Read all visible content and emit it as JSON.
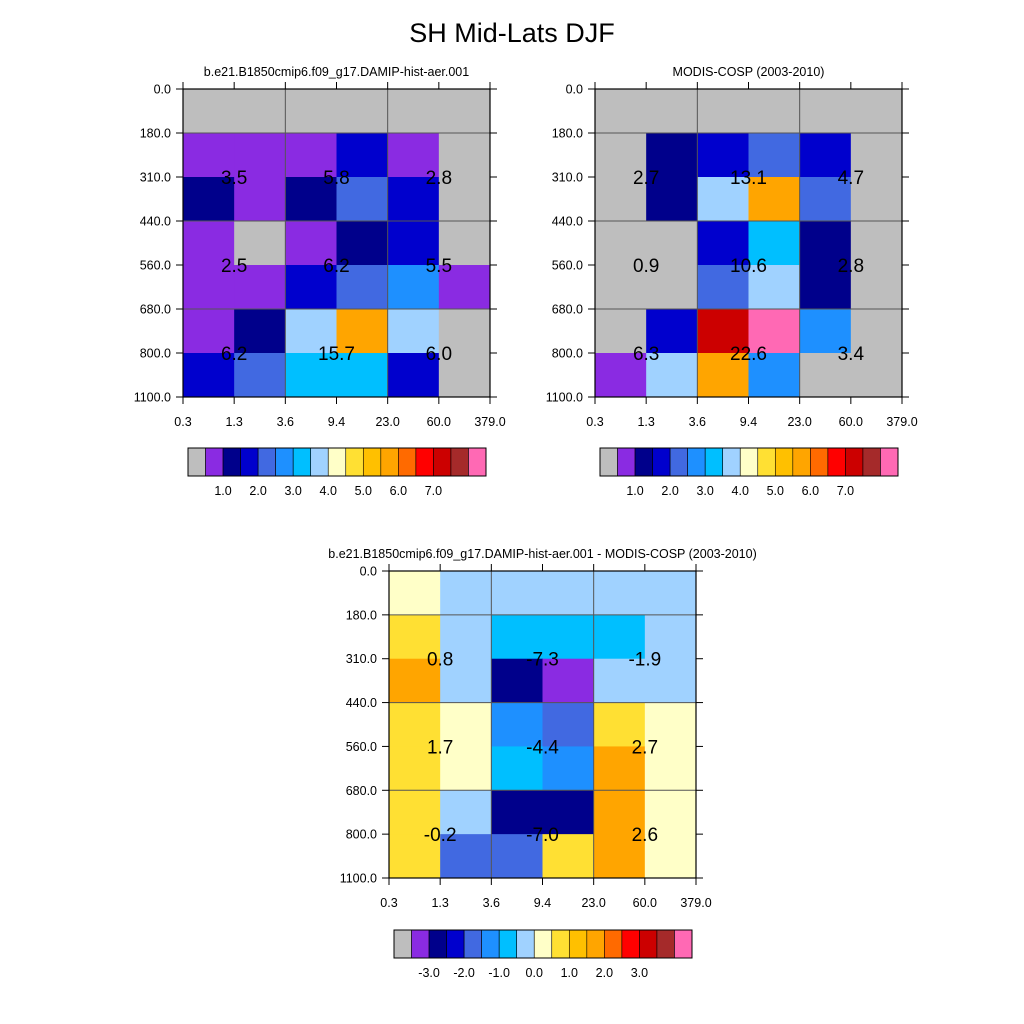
{
  "title": "SH Mid-Lats DJF",
  "x_tick_labels": [
    "0.3",
    "1.3",
    "3.6",
    "9.4",
    "23.0",
    "60.0",
    "379.0"
  ],
  "y_tick_labels": [
    "0.0",
    "180.0",
    "310.0",
    "440.0",
    "560.0",
    "680.0",
    "800.0",
    "1100.0"
  ],
  "colors": {
    "missing": "#bebebe",
    "abs_palette": [
      "#bebebe",
      "#8a2be2",
      "#00008b",
      "#0000cd",
      "#4169e1",
      "#1e90ff",
      "#00bfff",
      "#a0d2ff",
      "#ffffc8",
      "#ffe033",
      "#ffc000",
      "#ffa500",
      "#ff6a00",
      "#ff0000",
      "#cc0000",
      "#a52a2a",
      "#ff69b4"
    ],
    "diff_palette": [
      "#bebebe",
      "#8a2be2",
      "#00008b",
      "#0000cd",
      "#4169e1",
      "#1e90ff",
      "#00bfff",
      "#a0d2ff",
      "#ffffc8",
      "#ffe033",
      "#ffc000",
      "#ffa500",
      "#ff6a00",
      "#ff0000",
      "#cc0000",
      "#a52a2a",
      "#ff69b4"
    ]
  },
  "chart_data": [
    {
      "type": "heatmap",
      "title": "b.e21.B1850cmip6.f09_g17.DAMIP-hist-aer.001",
      "x_bins": [
        "0.3",
        "1.3",
        "3.6",
        "9.4",
        "23.0",
        "60.0",
        "379.0"
      ],
      "y_bins": [
        "0.0",
        "180.0",
        "310.0",
        "440.0",
        "560.0",
        "680.0",
        "800.0",
        "1100.0"
      ],
      "cell_colors": [
        [
          "#bebebe",
          "#bebebe",
          "#bebebe",
          "#bebebe",
          "#bebebe",
          "#bebebe"
        ],
        [
          "#8a2be2",
          "#8a2be2",
          "#8a2be2",
          "#0000cd",
          "#8a2be2",
          "#bebebe"
        ],
        [
          "#00008b",
          "#8a2be2",
          "#00008b",
          "#4169e1",
          "#0000cd",
          "#bebebe"
        ],
        [
          "#8a2be2",
          "#bebebe",
          "#8a2be2",
          "#00008b",
          "#0000cd",
          "#bebebe"
        ],
        [
          "#8a2be2",
          "#8a2be2",
          "#0000cd",
          "#4169e1",
          "#1e90ff",
          "#8a2be2"
        ],
        [
          "#8a2be2",
          "#00008b",
          "#a0d2ff",
          "#ffa500",
          "#a0d2ff",
          "#bebebe"
        ],
        [
          "#0000cd",
          "#4169e1",
          "#00bfff",
          "#00bfff",
          "#0000cd",
          "#bebebe"
        ]
      ],
      "block_labels": [
        [
          "3.5",
          "5.8",
          "2.8"
        ],
        [
          "2.5",
          "6.2",
          "5.5"
        ],
        [
          "6.2",
          "15.7",
          "6.0"
        ]
      ],
      "colorbar_labels": [
        "1.0",
        "2.0",
        "3.0",
        "4.0",
        "5.0",
        "6.0",
        "7.0"
      ]
    },
    {
      "type": "heatmap",
      "title": "MODIS-COSP (2003-2010)",
      "x_bins": [
        "0.3",
        "1.3",
        "3.6",
        "9.4",
        "23.0",
        "60.0",
        "379.0"
      ],
      "y_bins": [
        "0.0",
        "180.0",
        "310.0",
        "440.0",
        "560.0",
        "680.0",
        "800.0",
        "1100.0"
      ],
      "cell_colors": [
        [
          "#bebebe",
          "#bebebe",
          "#bebebe",
          "#bebebe",
          "#bebebe",
          "#bebebe"
        ],
        [
          "#bebebe",
          "#00008b",
          "#0000cd",
          "#4169e1",
          "#0000cd",
          "#bebebe"
        ],
        [
          "#bebebe",
          "#00008b",
          "#a0d2ff",
          "#ffa500",
          "#4169e1",
          "#bebebe"
        ],
        [
          "#bebebe",
          "#bebebe",
          "#0000cd",
          "#00bfff",
          "#00008b",
          "#bebebe"
        ],
        [
          "#bebebe",
          "#bebebe",
          "#4169e1",
          "#a0d2ff",
          "#00008b",
          "#bebebe"
        ],
        [
          "#bebebe",
          "#0000cd",
          "#cc0000",
          "#ff69b4",
          "#1e90ff",
          "#bebebe"
        ],
        [
          "#8a2be2",
          "#a0d2ff",
          "#ffa500",
          "#1e90ff",
          "#bebebe",
          "#bebebe"
        ]
      ],
      "block_labels": [
        [
          "2.7",
          "13.1",
          "4.7"
        ],
        [
          "0.9",
          "10.6",
          "2.8"
        ],
        [
          "6.3",
          "22.6",
          "3.4"
        ]
      ],
      "colorbar_labels": [
        "1.0",
        "2.0",
        "3.0",
        "4.0",
        "5.0",
        "6.0",
        "7.0"
      ]
    },
    {
      "type": "heatmap",
      "title": "b.e21.B1850cmip6.f09_g17.DAMIP-hist-aer.001 - MODIS-COSP (2003-2010)",
      "x_bins": [
        "0.3",
        "1.3",
        "3.6",
        "9.4",
        "23.0",
        "60.0",
        "379.0"
      ],
      "y_bins": [
        "0.0",
        "180.0",
        "310.0",
        "440.0",
        "560.0",
        "680.0",
        "800.0",
        "1100.0"
      ],
      "cell_colors": [
        [
          "#ffffc8",
          "#a0d2ff",
          "#a0d2ff",
          "#a0d2ff",
          "#a0d2ff",
          "#a0d2ff"
        ],
        [
          "#ffe033",
          "#a0d2ff",
          "#00bfff",
          "#00bfff",
          "#00bfff",
          "#a0d2ff"
        ],
        [
          "#ffa500",
          "#a0d2ff",
          "#00008b",
          "#8a2be2",
          "#a0d2ff",
          "#a0d2ff"
        ],
        [
          "#ffe033",
          "#ffffc8",
          "#1e90ff",
          "#4169e1",
          "#ffe033",
          "#ffffc8"
        ],
        [
          "#ffe033",
          "#ffffc8",
          "#00bfff",
          "#1e90ff",
          "#ffa500",
          "#ffffc8"
        ],
        [
          "#ffe033",
          "#a0d2ff",
          "#00008b",
          "#00008b",
          "#ffa500",
          "#ffffc8"
        ],
        [
          "#ffe033",
          "#4169e1",
          "#4169e1",
          "#ffe033",
          "#ffa500",
          "#ffffc8"
        ]
      ],
      "block_labels": [
        [
          "0.8",
          "-7.3",
          "-1.9"
        ],
        [
          "1.7",
          "-4.4",
          "2.7"
        ],
        [
          "-0.2",
          "-7.0",
          "2.6"
        ]
      ],
      "colorbar_labels": [
        "-3.0",
        "-2.0",
        "-1.0",
        "0.0",
        "1.0",
        "2.0",
        "3.0"
      ]
    }
  ]
}
